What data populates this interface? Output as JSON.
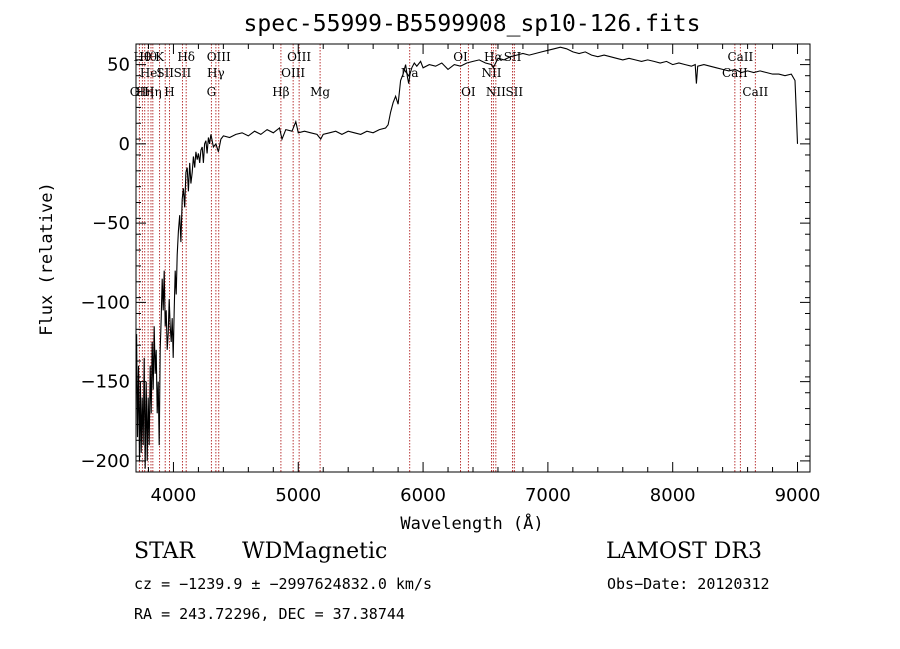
{
  "chart_data": {
    "type": "line",
    "title": "spec-55999-B5599908_sp10-126.fits",
    "xlabel": "Wavelength (Å)",
    "ylabel": "Flux (relative)",
    "xlim": [
      3700,
      9100
    ],
    "ylim": [
      -207,
      63
    ],
    "xticks": [
      4000,
      5000,
      6000,
      7000,
      8000,
      9000
    ],
    "yticks": [
      -200,
      -150,
      -100,
      -50,
      0,
      50
    ],
    "ytick_labels": [
      "−200",
      "−150",
      "−100",
      "−50",
      "0",
      "50"
    ],
    "grid": false,
    "series": [
      {
        "values": [
          [
            3705,
            -120
          ],
          [
            3712,
            -185
          ],
          [
            3720,
            -140
          ],
          [
            3728,
            -200
          ],
          [
            3735,
            -150
          ],
          [
            3742,
            -195
          ],
          [
            3750,
            -160
          ],
          [
            3758,
            -190
          ],
          [
            3766,
            -135
          ],
          [
            3774,
            -205
          ],
          [
            3782,
            -150
          ],
          [
            3790,
            -200
          ],
          [
            3798,
            -160
          ],
          [
            3806,
            -190
          ],
          [
            3814,
            -140
          ],
          [
            3822,
            -170
          ],
          [
            3830,
            -125
          ],
          [
            3838,
            -155
          ],
          [
            3846,
            -115
          ],
          [
            3854,
            -145
          ],
          [
            3862,
            -130
          ],
          [
            3870,
            -170
          ],
          [
            3878,
            -150
          ],
          [
            3886,
            -190
          ],
          [
            3894,
            -130
          ],
          [
            3902,
            -110
          ],
          [
            3910,
            -85
          ],
          [
            3918,
            -105
          ],
          [
            3926,
            -80
          ],
          [
            3934,
            -115
          ],
          [
            3942,
            -105
          ],
          [
            3950,
            -130
          ],
          [
            3958,
            -120
          ],
          [
            3966,
            -98
          ],
          [
            3974,
            -115
          ],
          [
            3982,
            -125
          ],
          [
            3990,
            -110
          ],
          [
            3998,
            -135
          ],
          [
            4006,
            -105
          ],
          [
            4014,
            -80
          ],
          [
            4022,
            -95
          ],
          [
            4030,
            -70
          ],
          [
            4040,
            -55
          ],
          [
            4050,
            -45
          ],
          [
            4060,
            -62
          ],
          [
            4070,
            -35
          ],
          [
            4080,
            -28
          ],
          [
            4090,
            -40
          ],
          [
            4100,
            -18
          ],
          [
            4110,
            -15
          ],
          [
            4120,
            -30
          ],
          [
            4130,
            -12
          ],
          [
            4140,
            -25
          ],
          [
            4150,
            -18
          ],
          [
            4160,
            -8
          ],
          [
            4170,
            -15
          ],
          [
            4180,
            -5
          ],
          [
            4190,
            -10
          ],
          [
            4200,
            -6
          ],
          [
            4210,
            -12
          ],
          [
            4220,
            -4
          ],
          [
            4230,
            -2
          ],
          [
            4240,
            -12
          ],
          [
            4250,
            0
          ],
          [
            4260,
            2
          ],
          [
            4270,
            -6
          ],
          [
            4280,
            4
          ],
          [
            4290,
            0
          ],
          [
            4300,
            6
          ],
          [
            4320,
            -2
          ],
          [
            4340,
            0
          ],
          [
            4360,
            -5
          ],
          [
            4380,
            3
          ],
          [
            4400,
            5
          ],
          [
            4450,
            4
          ],
          [
            4500,
            6
          ],
          [
            4550,
            7
          ],
          [
            4600,
            5
          ],
          [
            4650,
            8
          ],
          [
            4700,
            6
          ],
          [
            4750,
            9
          ],
          [
            4800,
            7
          ],
          [
            4850,
            10
          ],
          [
            4870,
            3
          ],
          [
            4900,
            9
          ],
          [
            4950,
            8
          ],
          [
            4980,
            14
          ],
          [
            5000,
            7
          ],
          [
            5050,
            8
          ],
          [
            5100,
            7
          ],
          [
            5150,
            6
          ],
          [
            5180,
            3
          ],
          [
            5200,
            6
          ],
          [
            5250,
            7
          ],
          [
            5300,
            8
          ],
          [
            5350,
            6
          ],
          [
            5400,
            8
          ],
          [
            5450,
            7
          ],
          [
            5500,
            6
          ],
          [
            5550,
            8
          ],
          [
            5600,
            7
          ],
          [
            5650,
            9
          ],
          [
            5700,
            10
          ],
          [
            5720,
            12
          ],
          [
            5740,
            20
          ],
          [
            5760,
            26
          ],
          [
            5780,
            30
          ],
          [
            5800,
            25
          ],
          [
            5820,
            40
          ],
          [
            5840,
            44
          ],
          [
            5860,
            50
          ],
          [
            5875,
            42
          ],
          [
            5885,
            38
          ],
          [
            5895,
            44
          ],
          [
            5910,
            48
          ],
          [
            5930,
            51
          ],
          [
            5950,
            49
          ],
          [
            5980,
            52
          ],
          [
            6000,
            48
          ],
          [
            6050,
            50
          ],
          [
            6100,
            49
          ],
          [
            6150,
            51
          ],
          [
            6200,
            47
          ],
          [
            6250,
            50
          ],
          [
            6300,
            49
          ],
          [
            6350,
            51
          ],
          [
            6400,
            52
          ],
          [
            6450,
            53
          ],
          [
            6500,
            51
          ],
          [
            6550,
            50
          ],
          [
            6563,
            48
          ],
          [
            6600,
            54
          ],
          [
            6650,
            53
          ],
          [
            6700,
            55
          ],
          [
            6750,
            56
          ],
          [
            6800,
            57
          ],
          [
            6850,
            56
          ],
          [
            6900,
            57
          ],
          [
            6950,
            58
          ],
          [
            7000,
            59
          ],
          [
            7050,
            60
          ],
          [
            7100,
            61
          ],
          [
            7150,
            60
          ],
          [
            7200,
            58
          ],
          [
            7250,
            57
          ],
          [
            7300,
            58
          ],
          [
            7350,
            56
          ],
          [
            7400,
            55
          ],
          [
            7450,
            56
          ],
          [
            7500,
            55
          ],
          [
            7550,
            54
          ],
          [
            7600,
            53
          ],
          [
            7650,
            54
          ],
          [
            7700,
            53
          ],
          [
            7750,
            52
          ],
          [
            7800,
            53
          ],
          [
            7850,
            52
          ],
          [
            7900,
            51
          ],
          [
            7950,
            52
          ],
          [
            8000,
            50
          ],
          [
            8050,
            51
          ],
          [
            8100,
            50
          ],
          [
            8150,
            49
          ],
          [
            8180,
            50
          ],
          [
            8190,
            38
          ],
          [
            8200,
            49
          ],
          [
            8250,
            50
          ],
          [
            8300,
            49
          ],
          [
            8350,
            48
          ],
          [
            8400,
            47
          ],
          [
            8450,
            46
          ],
          [
            8500,
            47
          ],
          [
            8550,
            45
          ],
          [
            8600,
            46
          ],
          [
            8650,
            45
          ],
          [
            8700,
            46
          ],
          [
            8750,
            45
          ],
          [
            8800,
            44
          ],
          [
            8850,
            44
          ],
          [
            8900,
            43
          ],
          [
            8950,
            44
          ],
          [
            8980,
            40
          ],
          [
            8990,
            20
          ],
          [
            9000,
            0
          ]
        ]
      }
    ],
    "lines": [
      {
        "w": 3727,
        "label": "OII",
        "row": 2
      },
      {
        "w": 3751,
        "label": "Hθ",
        "row": 0
      },
      {
        "w": 3770,
        "label": "Hη",
        "row": 2
      },
      {
        "w": 3797,
        "label": "Hθ",
        "row": 0
      },
      {
        "w": 3820,
        "label": "HeI",
        "row": 1
      },
      {
        "w": 3835,
        "label": "Hη",
        "row": 2
      },
      {
        "w": 3889,
        "label": "K",
        "row": 0
      },
      {
        "w": 3934,
        "label": "SII",
        "row": 1
      },
      {
        "w": 3968,
        "label": "H",
        "row": 2
      },
      {
        "w": 4072,
        "label": "SII",
        "row": 1
      },
      {
        "w": 4102,
        "label": "Hδ",
        "row": 0
      },
      {
        "w": 4304,
        "label": "G",
        "row": 2
      },
      {
        "w": 4340,
        "label": "Hγ",
        "row": 1
      },
      {
        "w": 4363,
        "label": "OIII",
        "row": 0
      },
      {
        "w": 4861,
        "label": "Hβ",
        "row": 2
      },
      {
        "w": 4959,
        "label": "OIII",
        "row": 1
      },
      {
        "w": 5007,
        "label": "OIII",
        "row": 0
      },
      {
        "w": 5175,
        "label": "Mg",
        "row": 2
      },
      {
        "w": 5893,
        "label": "Na",
        "row": 1
      },
      {
        "w": 6300,
        "label": "OI",
        "row": 0
      },
      {
        "w": 6363,
        "label": "OI",
        "row": 2
      },
      {
        "w": 6548,
        "label": "NII",
        "row": 1
      },
      {
        "w": 6563,
        "label": "Hα",
        "row": 0
      },
      {
        "w": 6583,
        "label": "NII",
        "row": 2
      },
      {
        "w": 6717,
        "label": "SII",
        "row": 0
      },
      {
        "w": 6731,
        "label": "SII",
        "row": 2
      },
      {
        "w": 8498,
        "label": "CaII",
        "row": 1
      },
      {
        "w": 8542,
        "label": "CaII",
        "row": 0
      },
      {
        "w": 8662,
        "label": "CaII",
        "row": 2
      }
    ]
  },
  "footer": {
    "class": "STAR",
    "subclass": "WDMagnetic",
    "survey": "LAMOST DR3",
    "cz_line": "cz = −1239.9 ± −2997624832.0 km/s",
    "obs_date": "Obs−Date: 20120312",
    "coords": "RA = 243.72296, DEC =  37.38744"
  }
}
